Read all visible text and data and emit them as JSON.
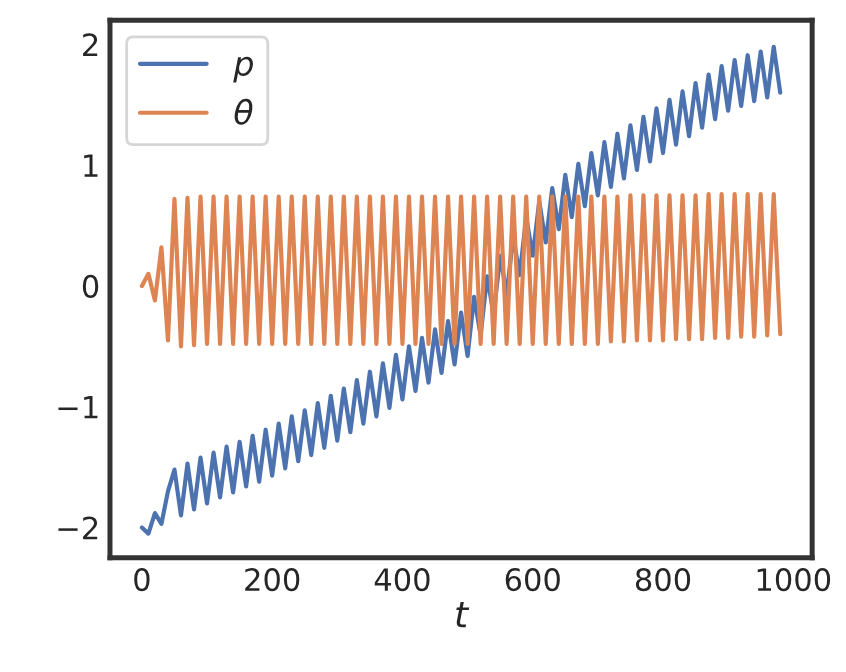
{
  "chart_data": {
    "type": "line",
    "xlabel": "t",
    "legend": "top left",
    "grid": false,
    "x": [
      0,
      10,
      20,
      30,
      40,
      50,
      60,
      70,
      80,
      90,
      100,
      110,
      120,
      130,
      140,
      150,
      160,
      170,
      180,
      190,
      200,
      210,
      220,
      230,
      240,
      250,
      260,
      270,
      280,
      290,
      300,
      310,
      320,
      330,
      340,
      350,
      360,
      370,
      380,
      390,
      400,
      410,
      420,
      430,
      440,
      450,
      460,
      470,
      480,
      490,
      500,
      510,
      520,
      530,
      540,
      550,
      560,
      570,
      580,
      590,
      600,
      610,
      620,
      630,
      640,
      650,
      660,
      670,
      680,
      690,
      700,
      710,
      720,
      730,
      740,
      750,
      760,
      770,
      780,
      790,
      800,
      810,
      820,
      830,
      840,
      850,
      860,
      870,
      880,
      890,
      900,
      910,
      920,
      930,
      940,
      950,
      960,
      970,
      980
    ],
    "series": [
      {
        "name": "p",
        "color": "#4c72b0",
        "values": [
          -2.0,
          -2.05,
          -1.88,
          -1.97,
          -1.7,
          -1.52,
          -1.9,
          -1.47,
          -1.85,
          -1.42,
          -1.8,
          -1.38,
          -1.75,
          -1.33,
          -1.71,
          -1.29,
          -1.66,
          -1.24,
          -1.62,
          -1.19,
          -1.57,
          -1.14,
          -1.51,
          -1.08,
          -1.45,
          -1.03,
          -1.4,
          -0.97,
          -1.34,
          -0.91,
          -1.28,
          -0.85,
          -1.21,
          -0.78,
          -1.14,
          -0.71,
          -1.08,
          -0.64,
          -1.01,
          -0.57,
          -0.94,
          -0.5,
          -0.87,
          -0.43,
          -0.8,
          -0.36,
          -0.72,
          -0.29,
          -0.65,
          -0.22,
          -0.58,
          -0.09,
          -0.41,
          0.08,
          -0.24,
          0.25,
          -0.07,
          0.41,
          0.09,
          0.57,
          0.25,
          0.7,
          0.36,
          0.81,
          0.47,
          0.92,
          0.57,
          1.01,
          0.66,
          1.1,
          0.75,
          1.19,
          0.82,
          1.26,
          0.89,
          1.33,
          0.96,
          1.4,
          1.03,
          1.47,
          1.1,
          1.54,
          1.17,
          1.61,
          1.24,
          1.68,
          1.31,
          1.75,
          1.38,
          1.82,
          1.45,
          1.87,
          1.49,
          1.91,
          1.53,
          1.94,
          1.56,
          1.98,
          1.6
        ]
      },
      {
        "name": "θ",
        "color": "#dd8452",
        "values": [
          0.0,
          0.1,
          -0.12,
          0.32,
          -0.45,
          0.72,
          -0.5,
          0.73,
          -0.49,
          0.74,
          -0.48,
          0.74,
          -0.48,
          0.74,
          -0.48,
          0.74,
          -0.48,
          0.74,
          -0.48,
          0.74,
          -0.48,
          0.74,
          -0.48,
          0.74,
          -0.48,
          0.74,
          -0.48,
          0.74,
          -0.48,
          0.74,
          -0.48,
          0.74,
          -0.48,
          0.74,
          -0.48,
          0.74,
          -0.48,
          0.74,
          -0.48,
          0.74,
          -0.48,
          0.74,
          -0.48,
          0.74,
          -0.48,
          0.74,
          -0.48,
          0.74,
          -0.48,
          0.74,
          -0.48,
          0.74,
          -0.48,
          0.74,
          -0.48,
          0.74,
          -0.48,
          0.74,
          -0.48,
          0.74,
          -0.48,
          0.74,
          -0.48,
          0.74,
          -0.48,
          0.74,
          -0.48,
          0.74,
          -0.48,
          0.74,
          -0.48,
          0.74,
          -0.46,
          0.74,
          -0.46,
          0.75,
          -0.45,
          0.75,
          -0.45,
          0.75,
          -0.45,
          0.75,
          -0.44,
          0.75,
          -0.44,
          0.75,
          -0.44,
          0.76,
          -0.43,
          0.76,
          -0.43,
          0.76,
          -0.42,
          0.76,
          -0.42,
          0.76,
          -0.41,
          0.76,
          -0.4
        ]
      }
    ],
    "xlim": [
      -49,
      1029
    ],
    "xticks": [
      0,
      200,
      400,
      600,
      800,
      1000
    ],
    "ylim": [
      -2.25,
      2.2
    ],
    "yticks": [
      -2,
      -1,
      0,
      1,
      2
    ]
  }
}
